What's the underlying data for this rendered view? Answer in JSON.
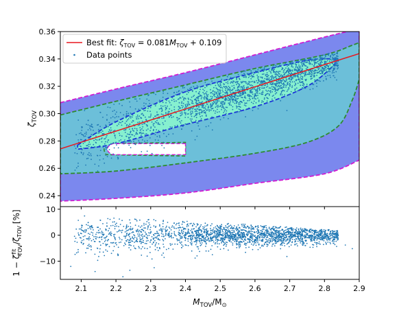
{
  "chart_data": [
    {
      "id": "top",
      "type": "scatter",
      "xlabel_html": "M_TOV / M_⊙",
      "ylabel": "ζ_TOV",
      "xlim": [
        2.04,
        2.9
      ],
      "ylim": [
        0.232,
        0.36
      ],
      "xticks": [
        2.1,
        2.2,
        2.3,
        2.4,
        2.5,
        2.6,
        2.7,
        2.8,
        2.9
      ],
      "yticks": [
        0.24,
        0.26,
        0.28,
        0.3,
        0.32,
        0.34,
        0.36
      ],
      "ytick_labels": [
        "0.24",
        "0.26",
        "0.28",
        "0.30",
        "0.32",
        "0.34",
        "0.36"
      ],
      "legend": {
        "position": "top-left",
        "entries": [
          {
            "label_prefix": "Best fit: ",
            "label_math": "ζ_TOV = 0.081 M_TOV + 0.109",
            "color": "#e8171e"
          },
          {
            "label": "Data points",
            "color": "#1f77b4"
          }
        ]
      },
      "fit_line": {
        "slope": 0.081,
        "intercept": 0.109,
        "x_range": [
          2.04,
          2.9
        ],
        "color": "#e8171e"
      },
      "scatter": {
        "n_points": 2200,
        "color": "#1f77b4"
      },
      "contours": [
        {
          "level": "outer",
          "fill": "#7b88ee",
          "edge": "#d11bd1",
          "upper": [
            [
              2.04,
              0.308
            ],
            [
              2.2,
              0.318
            ],
            [
              2.4,
              0.33
            ],
            [
              2.6,
              0.343
            ],
            [
              2.8,
              0.356
            ],
            [
              2.9,
              0.362
            ]
          ],
          "lower": [
            [
              2.04,
              0.236
            ],
            [
              2.2,
              0.238
            ],
            [
              2.4,
              0.242
            ],
            [
              2.6,
              0.249
            ],
            [
              2.8,
              0.256
            ],
            [
              2.9,
              0.266
            ]
          ]
        },
        {
          "level": "middle",
          "fill": "#6cbfd9",
          "edge": "#2e8b2e",
          "upper": [
            [
              2.04,
              0.299
            ],
            [
              2.2,
              0.309
            ],
            [
              2.4,
              0.321
            ],
            [
              2.6,
              0.333
            ],
            [
              2.8,
              0.343
            ],
            [
              2.88,
              0.35
            ],
            [
              2.9,
              0.352
            ]
          ],
          "lower": [
            [
              2.04,
              0.256
            ],
            [
              2.2,
              0.258
            ],
            [
              2.4,
              0.264
            ],
            [
              2.6,
              0.271
            ],
            [
              2.75,
              0.279
            ],
            [
              2.84,
              0.291
            ],
            [
              2.88,
              0.31
            ],
            [
              2.9,
              0.325
            ]
          ]
        },
        {
          "level": "inner",
          "fill": "#86f0cf",
          "edge": "#1a30d8",
          "upper": [
            [
              2.09,
              0.277
            ],
            [
              2.2,
              0.294
            ],
            [
              2.4,
              0.316
            ],
            [
              2.6,
              0.33
            ],
            [
              2.75,
              0.339
            ],
            [
              2.83,
              0.34
            ]
          ],
          "lower": [
            [
              2.09,
              0.274
            ],
            [
              2.2,
              0.278
            ],
            [
              2.4,
              0.292
            ],
            [
              2.6,
              0.305
            ],
            [
              2.75,
              0.32
            ],
            [
              2.83,
              0.336
            ]
          ]
        }
      ],
      "notch": {
        "tip_x": 2.16,
        "y_mid": 0.274,
        "half_width": 0.004,
        "fill": "#ffffff"
      }
    },
    {
      "id": "bottom",
      "type": "scatter",
      "xlabel": "M_TOV/M_⊙",
      "ylabel": "1 − ζ_TOV^fit / ζ_TOV [%]",
      "xlim": [
        2.04,
        2.9
      ],
      "ylim": [
        -17,
        11
      ],
      "xticks": [
        2.1,
        2.2,
        2.3,
        2.4,
        2.5,
        2.6,
        2.7,
        2.8,
        2.9
      ],
      "xtick_labels": [
        "2.1",
        "2.2",
        "2.3",
        "2.4",
        "2.5",
        "2.6",
        "2.7",
        "2.8",
        "2.9"
      ],
      "yticks": [
        -10,
        0,
        10
      ],
      "ytick_labels": [
        "−10",
        "0",
        "10"
      ],
      "scatter": {
        "n_points": 2200,
        "color": "#1f77b4"
      }
    }
  ],
  "labels": {
    "legend_fit_prefix": "Best fit: ",
    "legend_data": "Data points",
    "xlabel_main": "M",
    "xlabel_sub1": "TOV",
    "xlabel_div": "/M",
    "xlabel_sub2": "⊙",
    "ylabel_top_main": "ζ",
    "ylabel_top_sub": "TOV",
    "ylabel_bot_a": "1 − ζ",
    "ylabel_bot_sup": "fit",
    "ylabel_bot_sub": "TOV",
    "ylabel_bot_b": "/ζ",
    "ylabel_bot_sub2": "TOV",
    "ylabel_bot_c": "[%]",
    "fit_zeta": "ζ",
    "fit_sub": "TOV",
    "fit_eq": " = 0.081",
    "fit_m": "M",
    "fit_sub2": "TOV",
    "fit_tail": " + 0.109"
  }
}
